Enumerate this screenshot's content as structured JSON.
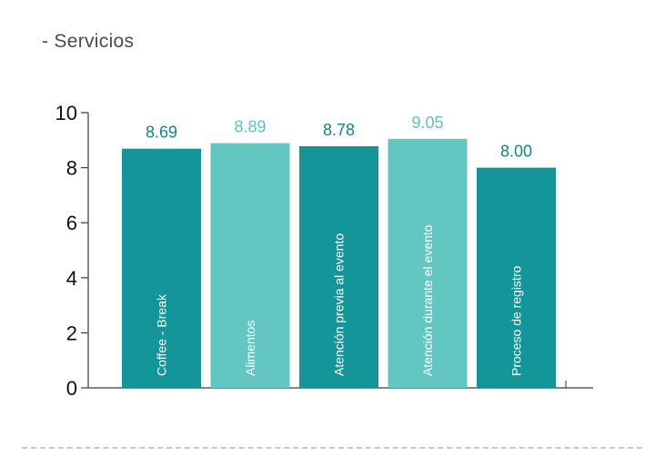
{
  "section": {
    "title": "- Servicios"
  },
  "chart_data": {
    "type": "bar",
    "categories": [
      "Coffee - Break",
      "Alimentos",
      "Atención previa al evento",
      "Atención durante el evento",
      "Proceso de registro"
    ],
    "values": [
      8.69,
      8.89,
      8.78,
      9.05,
      8.0
    ],
    "value_labels": [
      "8.69",
      "8.89",
      "8.78",
      "9.05",
      "8.00"
    ],
    "ylim": [
      0,
      10
    ],
    "yticks": [
      0,
      2,
      4,
      6,
      8,
      10
    ],
    "bar_colors": [
      "#14959a",
      "#62c6c1",
      "#14959a",
      "#62c6c1",
      "#14959a"
    ],
    "label_colors": [
      "#13868a",
      "#5cc3be",
      "#13868a",
      "#5cc3be",
      "#13868a"
    ],
    "category_label_position": "inside-bar-rotated",
    "grid": false,
    "legend": "none"
  }
}
